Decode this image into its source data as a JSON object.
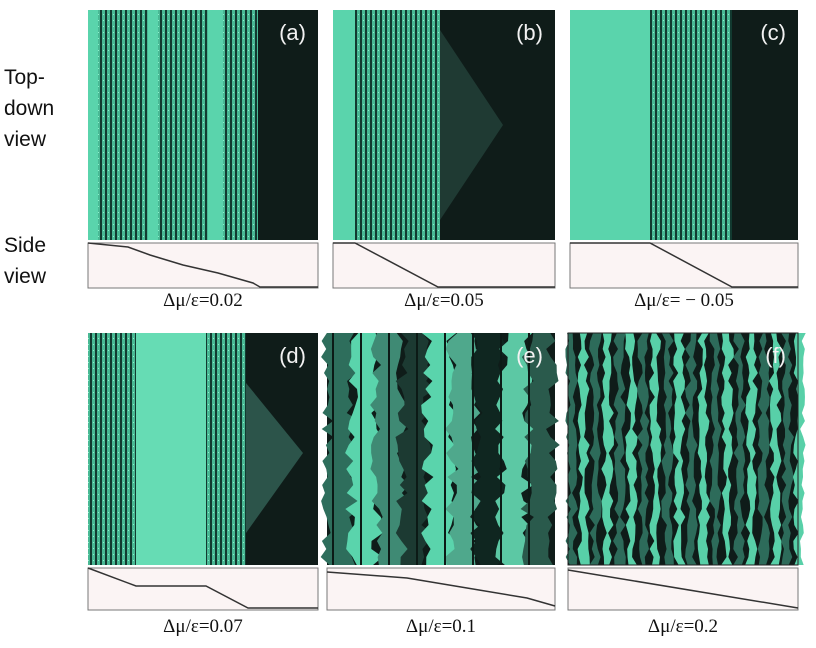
{
  "labels": {
    "top_down": [
      "Top-",
      "down",
      "view"
    ],
    "side": [
      "Side",
      "view"
    ]
  },
  "panels": [
    {
      "label": "(a)",
      "caption": "Δμ/ε=0.02"
    },
    {
      "label": "(b)",
      "caption": "Δμ/ε=0.05"
    },
    {
      "label": "(c)",
      "caption": "Δμ/ε= − 0.05"
    },
    {
      "label": "(d)",
      "caption": "Δμ/ε=0.07"
    },
    {
      "label": "(e)",
      "caption": "Δμ/ε=0.1"
    },
    {
      "label": "(f)",
      "caption": "Δμ/ε=0.2"
    }
  ]
}
